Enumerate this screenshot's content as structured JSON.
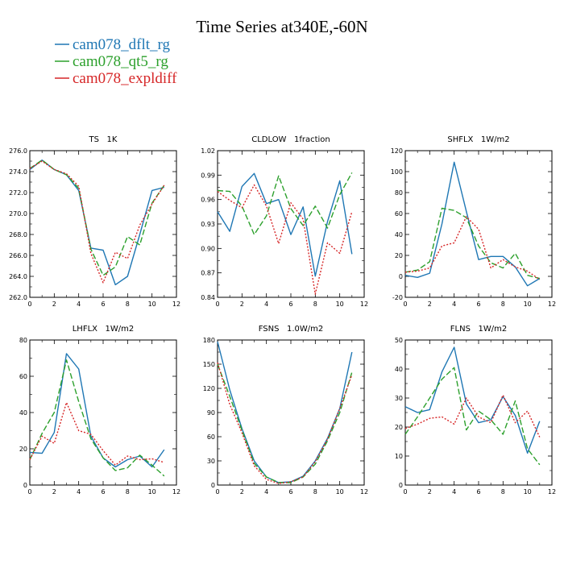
{
  "figure": {
    "title": "Time Series at340E,-60N"
  },
  "legend": [
    {
      "label": "cam078_dflt_rg",
      "color": "#1f77b4",
      "dash": "solid"
    },
    {
      "label": "cam078_qt5_rg",
      "color": "#2ca02c",
      "dash": "longdash"
    },
    {
      "label": "cam078_expldiff",
      "color": "#d62728",
      "dash": "dotted"
    }
  ],
  "chart_data": [
    {
      "type": "line",
      "title": "TS   1K",
      "xlim": [
        0,
        12
      ],
      "ylim": [
        262,
        276
      ],
      "xticks": [
        0,
        2,
        4,
        6,
        8,
        10,
        12
      ],
      "yticks": [
        "262.0",
        "264.0",
        "266.0",
        "268.0",
        "270.0",
        "272.0",
        "274.0",
        "276.0"
      ],
      "x": [
        0,
        1,
        2,
        3,
        4,
        5,
        6,
        7,
        8,
        9,
        10,
        11
      ],
      "series": [
        {
          "name": "cam078_dflt_rg",
          "values": [
            274.2,
            275.1,
            274.2,
            273.7,
            272.2,
            266.7,
            266.5,
            263.2,
            264.0,
            268.0,
            272.2,
            272.5
          ]
        },
        {
          "name": "cam078_qt5_rg",
          "values": [
            274.3,
            275.1,
            274.2,
            273.7,
            272.4,
            266.6,
            264.1,
            264.9,
            267.8,
            267.0,
            271.0,
            272.7
          ]
        },
        {
          "name": "cam078_expldiff",
          "values": [
            274.3,
            275.0,
            274.2,
            273.8,
            272.6,
            266.2,
            263.4,
            266.3,
            265.7,
            268.9,
            270.9,
            272.7
          ]
        }
      ]
    },
    {
      "type": "line",
      "title": "CLDLOW   1fraction",
      "xlim": [
        0,
        12
      ],
      "ylim": [
        0.84,
        1.02
      ],
      "xticks": [
        0,
        2,
        4,
        6,
        8,
        10,
        12
      ],
      "yticks": [
        "0.84",
        "0.87",
        "0.90",
        "0.93",
        "0.96",
        "0.99",
        "1.02"
      ],
      "x": [
        0,
        1,
        2,
        3,
        4,
        5,
        6,
        7,
        8,
        9,
        10,
        11
      ],
      "series": [
        {
          "name": "cam078_dflt_rg",
          "values": [
            0.945,
            0.921,
            0.976,
            0.992,
            0.955,
            0.96,
            0.917,
            0.951,
            0.866,
            0.933,
            0.983,
            0.893
          ]
        },
        {
          "name": "cam078_qt5_rg",
          "values": [
            0.971,
            0.97,
            0.952,
            0.917,
            0.94,
            0.989,
            0.949,
            0.928,
            0.952,
            0.925,
            0.966,
            0.993
          ]
        },
        {
          "name": "cam078_expldiff",
          "values": [
            0.97,
            0.959,
            0.95,
            0.978,
            0.952,
            0.906,
            0.956,
            0.936,
            0.844,
            0.907,
            0.894,
            0.945
          ]
        }
      ]
    },
    {
      "type": "line",
      "title": "SHFLX   1W/m2",
      "xlim": [
        0,
        12
      ],
      "ylim": [
        -20,
        120
      ],
      "xticks": [
        0,
        2,
        4,
        6,
        8,
        10,
        12
      ],
      "yticks": [
        "-20",
        "0",
        "20",
        "40",
        "60",
        "80",
        "100",
        "120"
      ],
      "x": [
        0,
        1,
        2,
        3,
        4,
        5,
        6,
        7,
        8,
        9,
        10,
        11
      ],
      "series": [
        {
          "name": "cam078_dflt_rg",
          "values": [
            1,
            -1,
            3,
            50,
            109,
            62,
            16,
            19,
            19,
            9,
            -9,
            -2
          ]
        },
        {
          "name": "cam078_qt5_rg",
          "values": [
            4,
            6,
            14,
            65,
            63,
            56,
            29,
            13,
            8,
            22,
            1,
            -2
          ]
        },
        {
          "name": "cam078_expldiff",
          "values": [
            4,
            5,
            8,
            29,
            32,
            57,
            45,
            8,
            16,
            9,
            5,
            -3
          ]
        }
      ]
    },
    {
      "type": "line",
      "title": "LHFLX   1W/m2",
      "xlim": [
        0,
        12
      ],
      "ylim": [
        0,
        80
      ],
      "xticks": [
        0,
        2,
        4,
        6,
        8,
        10,
        12
      ],
      "yticks": [
        "0",
        "20",
        "40",
        "60",
        "80"
      ],
      "x": [
        0,
        1,
        2,
        3,
        4,
        5,
        6,
        7,
        8,
        9,
        10,
        11
      ],
      "series": [
        {
          "name": "cam078_dflt_rg",
          "values": [
            18,
            17.5,
            29,
            72.5,
            64,
            27,
            15,
            10,
            14,
            16,
            10,
            19.5
          ]
        },
        {
          "name": "cam078_qt5_rg",
          "values": [
            14,
            28.5,
            40,
            69,
            46,
            25.5,
            15,
            8,
            9.5,
            16.5,
            11,
            5
          ]
        },
        {
          "name": "cam078_expldiff",
          "values": [
            14,
            27,
            23,
            45.5,
            30,
            28,
            19,
            11,
            16,
            14,
            14.5,
            12.5
          ]
        }
      ]
    },
    {
      "type": "line",
      "title": "FSNS   1.0W/m2",
      "xlim": [
        0,
        12
      ],
      "ylim": [
        0,
        180
      ],
      "xticks": [
        0,
        2,
        4,
        6,
        8,
        10,
        12
      ],
      "yticks": [
        "0",
        "30",
        "60",
        "90",
        "120",
        "150",
        "180"
      ],
      "x": [
        0,
        1,
        2,
        3,
        4,
        5,
        6,
        7,
        8,
        9,
        10,
        11
      ],
      "series": [
        {
          "name": "cam078_dflt_rg",
          "values": [
            178,
            118,
            70,
            30,
            10,
            3,
            4,
            11,
            30,
            58,
            95,
            165
          ]
        },
        {
          "name": "cam078_qt5_rg",
          "values": [
            150,
            110,
            68,
            27,
            10,
            3,
            3,
            10,
            26,
            55,
            90,
            140
          ]
        },
        {
          "name": "cam078_expldiff",
          "values": [
            152,
            100,
            65,
            24,
            7,
            2,
            4,
            10,
            29,
            57,
            95,
            137
          ]
        }
      ]
    },
    {
      "type": "line",
      "title": "FLNS   1W/m2",
      "xlim": [
        0,
        12
      ],
      "ylim": [
        0,
        50
      ],
      "xticks": [
        0,
        2,
        4,
        6,
        8,
        10,
        12
      ],
      "yticks": [
        "0",
        "10",
        "20",
        "30",
        "40",
        "50"
      ],
      "x": [
        0,
        1,
        2,
        3,
        4,
        5,
        6,
        7,
        8,
        9,
        10,
        11
      ],
      "series": [
        {
          "name": "cam078_dflt_rg",
          "values": [
            27,
            25,
            26,
            39,
            47.5,
            28,
            21.5,
            22.5,
            30.5,
            24,
            11,
            22
          ]
        },
        {
          "name": "cam078_qt5_rg",
          "values": [
            17.5,
            23.5,
            30,
            36.5,
            40.5,
            19,
            25.5,
            22.5,
            17.5,
            29,
            12.5,
            7
          ]
        },
        {
          "name": "cam078_expldiff",
          "values": [
            19.5,
            21,
            23,
            23.5,
            21,
            30,
            23.5,
            21.5,
            31,
            21.5,
            25.5,
            16.5
          ]
        }
      ]
    }
  ]
}
